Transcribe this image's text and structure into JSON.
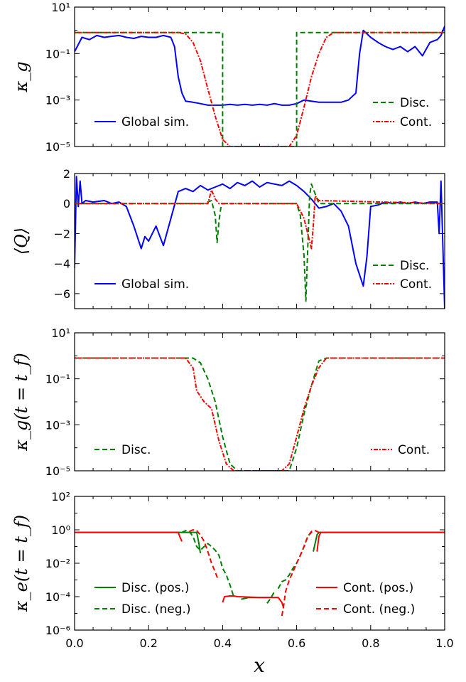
{
  "figure": {
    "xlabel": "x"
  },
  "colors": {
    "global": "#0000ff",
    "disc": "#008000",
    "cont": "#ff0000",
    "axis": "#000000"
  },
  "chart_data": [
    {
      "type": "line",
      "ylabel": "κ_g",
      "yscale": "log",
      "ylim": [
        1e-05,
        10
      ],
      "xlim": [
        0,
        1
      ],
      "yticks": [
        {
          "v": 1e-05,
          "t": "10⁻⁵"
        },
        {
          "v": 0.001,
          "t": "10⁻³"
        },
        {
          "v": 0.1,
          "t": "10⁻¹"
        },
        {
          "v": 10,
          "t": "10¹"
        }
      ],
      "legend": [
        {
          "label": "Global sim.",
          "series": "global",
          "pos": "bottom-left"
        },
        {
          "label": "Disc.",
          "series": "disc",
          "pos": "right-upper"
        },
        {
          "label": "Cont.",
          "series": "cont",
          "pos": "bottom-right"
        }
      ],
      "series": [
        {
          "name": "Global sim.",
          "key": "global",
          "style": "solid",
          "x": [
            0.0,
            0.02,
            0.04,
            0.06,
            0.08,
            0.1,
            0.12,
            0.14,
            0.16,
            0.18,
            0.2,
            0.22,
            0.24,
            0.26,
            0.27,
            0.28,
            0.29,
            0.3,
            0.32,
            0.34,
            0.36,
            0.38,
            0.4,
            0.42,
            0.44,
            0.46,
            0.48,
            0.5,
            0.52,
            0.54,
            0.56,
            0.58,
            0.6,
            0.62,
            0.64,
            0.66,
            0.68,
            0.7,
            0.72,
            0.74,
            0.76,
            0.77,
            0.78,
            0.8,
            0.82,
            0.84,
            0.86,
            0.88,
            0.9,
            0.92,
            0.94,
            0.96,
            0.98,
            0.99,
            1.0
          ],
          "y": [
            0.12,
            0.5,
            0.4,
            0.6,
            0.5,
            0.55,
            0.6,
            0.5,
            0.45,
            0.55,
            0.5,
            0.5,
            0.6,
            0.5,
            0.2,
            0.01,
            0.002,
            0.0009,
            0.0008,
            0.0007,
            0.0006,
            0.0006,
            0.0006,
            0.00065,
            0.0006,
            0.00065,
            0.0006,
            0.00065,
            0.0006,
            0.0007,
            0.0006,
            0.0006,
            0.0007,
            0.001,
            0.0009,
            0.0008,
            0.0008,
            0.0008,
            0.0008,
            0.001,
            0.002,
            0.1,
            1.0,
            0.5,
            0.3,
            0.2,
            0.15,
            0.2,
            0.12,
            0.2,
            0.08,
            0.3,
            0.4,
            0.6,
            1.5
          ]
        },
        {
          "name": "Disc.",
          "key": "disc",
          "style": "dashed",
          "x": [
            0.0,
            0.4,
            0.4,
            0.42,
            0.44,
            0.46,
            0.48,
            0.5,
            0.52,
            0.54,
            0.56,
            0.58,
            0.6,
            0.6,
            1.0
          ],
          "y": [
            0.8,
            0.8,
            1e-05,
            1e-05,
            1e-05,
            1e-05,
            1e-05,
            1e-05,
            1e-05,
            1e-05,
            1e-05,
            1e-05,
            1e-05,
            0.8,
            0.8
          ]
        },
        {
          "name": "Cont.",
          "key": "cont",
          "style": "dotted",
          "x": [
            0.0,
            0.28,
            0.3,
            0.32,
            0.34,
            0.36,
            0.38,
            0.4,
            0.42,
            0.58,
            0.6,
            0.62,
            0.64,
            0.66,
            0.68,
            0.7,
            1.0
          ],
          "y": [
            0.8,
            0.8,
            0.7,
            0.3,
            0.05,
            0.003,
            0.0002,
            2e-05,
            1e-05,
            1e-05,
            3e-05,
            0.0005,
            0.01,
            0.1,
            0.5,
            0.8,
            0.8
          ]
        }
      ]
    },
    {
      "type": "line",
      "ylabel": "⟨Q⟩",
      "yscale": "linear",
      "ylim": [
        -7,
        2
      ],
      "xlim": [
        0,
        1
      ],
      "yticks": [
        {
          "v": 2,
          "t": "2"
        },
        {
          "v": 0,
          "t": "0"
        },
        {
          "v": -2,
          "t": "−2"
        },
        {
          "v": -4,
          "t": "−4"
        },
        {
          "v": -6,
          "t": "−6"
        }
      ],
      "legend": [
        {
          "label": "Global sim.",
          "series": "global",
          "pos": "bottom-left"
        },
        {
          "label": "Disc.",
          "series": "disc",
          "pos": "right-upper"
        },
        {
          "label": "Cont.",
          "series": "cont",
          "pos": "bottom-right"
        }
      ],
      "series": [
        {
          "name": "Global sim.",
          "key": "global",
          "style": "solid",
          "x": [
            0.0,
            0.005,
            0.01,
            0.015,
            0.02,
            0.03,
            0.05,
            0.08,
            0.1,
            0.12,
            0.14,
            0.16,
            0.18,
            0.19,
            0.2,
            0.22,
            0.24,
            0.26,
            0.28,
            0.3,
            0.32,
            0.34,
            0.36,
            0.38,
            0.4,
            0.42,
            0.44,
            0.46,
            0.48,
            0.5,
            0.52,
            0.54,
            0.56,
            0.58,
            0.6,
            0.62,
            0.64,
            0.66,
            0.68,
            0.7,
            0.72,
            0.74,
            0.76,
            0.78,
            0.79,
            0.8,
            0.82,
            0.84,
            0.86,
            0.88,
            0.9,
            0.92,
            0.94,
            0.96,
            0.98,
            0.985,
            0.99,
            1.0
          ],
          "y": [
            -4.3,
            1.8,
            -0.2,
            1.5,
            0.0,
            0.2,
            0.1,
            0.2,
            0.0,
            0.1,
            -0.2,
            -1.5,
            -3.0,
            -2.2,
            -2.5,
            -1.5,
            -2.8,
            -1.0,
            0.8,
            1.0,
            0.8,
            1.2,
            0.9,
            1.1,
            1.3,
            1.0,
            1.4,
            1.2,
            1.5,
            1.1,
            1.4,
            1.3,
            1.2,
            1.5,
            1.2,
            0.8,
            0.3,
            -0.3,
            -0.2,
            0.0,
            -0.5,
            -1.5,
            -4.0,
            -5.5,
            -3.5,
            -0.2,
            -0.1,
            0.1,
            0.0,
            0.1,
            0.0,
            0.1,
            0.0,
            0.1,
            0.1,
            -2.0,
            1.5,
            -7.0
          ]
        },
        {
          "name": "Disc.",
          "key": "disc",
          "style": "dashed",
          "x": [
            0.0,
            0.35,
            0.37,
            0.38,
            0.385,
            0.39,
            0.395,
            0.4,
            0.45,
            0.6,
            0.61,
            0.62,
            0.625,
            0.63,
            0.635,
            0.64,
            0.66,
            1.0
          ],
          "y": [
            0.0,
            0.0,
            0.2,
            -0.8,
            -2.6,
            -1.2,
            -0.3,
            0.0,
            0.0,
            0.0,
            -0.8,
            -3.5,
            -6.5,
            -3.0,
            0.5,
            1.3,
            0.0,
            0.0
          ]
        },
        {
          "name": "Cont.",
          "key": "cont",
          "style": "dotted",
          "x": [
            0.0,
            0.36,
            0.37,
            0.38,
            0.39,
            0.6,
            0.62,
            0.64,
            0.645,
            0.65,
            0.66,
            1.0
          ],
          "y": [
            0.0,
            0.0,
            0.9,
            0.3,
            0.0,
            0.0,
            -1.0,
            -3.0,
            -1.5,
            0.5,
            0.2,
            0.0
          ]
        }
      ]
    },
    {
      "type": "line",
      "ylabel": "κ_g(t = t_f)",
      "yscale": "log",
      "ylim": [
        1e-05,
        10
      ],
      "xlim": [
        0,
        1
      ],
      "yticks": [
        {
          "v": 1e-05,
          "t": "10⁻⁵"
        },
        {
          "v": 0.001,
          "t": "10⁻³"
        },
        {
          "v": 0.1,
          "t": "10⁻¹"
        },
        {
          "v": 10,
          "t": "10¹"
        }
      ],
      "legend": [
        {
          "label": "Disc.",
          "series": "disc",
          "pos": "bottom-left"
        },
        {
          "label": "Cont.",
          "series": "cont",
          "pos": "bottom-right"
        }
      ],
      "series": [
        {
          "name": "Disc.",
          "key": "disc",
          "style": "dashed",
          "x": [
            0.0,
            0.32,
            0.34,
            0.36,
            0.38,
            0.4,
            0.42,
            0.44,
            0.46,
            0.5,
            0.54,
            0.58,
            0.6,
            0.62,
            0.64,
            0.66,
            0.68,
            1.0
          ],
          "y": [
            0.8,
            0.8,
            0.5,
            0.1,
            0.01,
            0.0003,
            2e-05,
            1e-05,
            1e-05,
            1e-05,
            1e-05,
            1e-05,
            0.0001,
            0.003,
            0.05,
            0.6,
            0.8,
            0.8
          ]
        },
        {
          "name": "Cont.",
          "key": "cont",
          "style": "dotted",
          "x": [
            0.0,
            0.3,
            0.32,
            0.33,
            0.35,
            0.37,
            0.39,
            0.41,
            0.43,
            0.5,
            0.56,
            0.58,
            0.6,
            0.62,
            0.64,
            0.66,
            0.68,
            0.7,
            1.0
          ],
          "y": [
            0.8,
            0.8,
            0.3,
            0.03,
            0.01,
            0.005,
            0.0002,
            2e-05,
            1e-05,
            1e-05,
            1e-05,
            2e-05,
            0.0003,
            0.005,
            0.05,
            0.3,
            0.8,
            0.8,
            0.8
          ]
        }
      ]
    },
    {
      "type": "line",
      "ylabel": "κ_e(t = t_f)",
      "yscale": "log",
      "ylim": [
        1e-06,
        100
      ],
      "xlim": [
        0,
        1
      ],
      "xticks": [
        "0.0",
        "0.2",
        "0.4",
        "0.6",
        "0.8",
        "1.0"
      ],
      "yticks": [
        {
          "v": 1e-06,
          "t": "10⁻⁶"
        },
        {
          "v": 0.0001,
          "t": "10⁻⁴"
        },
        {
          "v": 0.01,
          "t": "10⁻²"
        },
        {
          "v": 1,
          "t": "10⁰"
        },
        {
          "v": 100,
          "t": "10²"
        }
      ],
      "legend": [
        {
          "label": "Disc. (pos.)",
          "series": "disc-pos",
          "pos": "bottom-left-1"
        },
        {
          "label": "Disc. (neg.)",
          "series": "disc-neg",
          "pos": "bottom-left-2"
        },
        {
          "label": "Cont. (pos.)",
          "series": "cont-pos",
          "pos": "bottom-right-1"
        },
        {
          "label": "Cont. (neg.)",
          "series": "cont-neg",
          "pos": "bottom-right-2"
        }
      ],
      "series": [
        {
          "name": "Disc. (pos.)",
          "key": "disc",
          "style": "solid",
          "segments": [
            {
              "x": [
                0.0,
                0.33,
                0.335,
                0.34
              ],
              "y": [
                0.7,
                0.7,
                0.2,
                0.04
              ]
            },
            {
              "x": [
                0.45,
                0.47,
                0.5,
                0.53
              ],
              "y": [
                7e-05,
                9e-05,
                9e-05,
                9e-05
              ]
            },
            {
              "x": [
                0.645,
                0.655,
                0.66,
                0.68,
                1.0
              ],
              "y": [
                0.05,
                0.5,
                0.7,
                0.7,
                0.7
              ]
            }
          ]
        },
        {
          "name": "Disc. (neg.)",
          "key": "disc",
          "style": "dashed",
          "segments": [
            {
              "x": [
                0.29,
                0.3,
                0.31,
                0.32,
                0.33,
                0.34,
                0.35,
                0.36,
                0.37,
                0.38,
                0.39,
                0.4,
                0.41,
                0.42,
                0.43
              ],
              "y": [
                0.7,
                0.9,
                0.8,
                0.4,
                0.1,
                0.06,
                0.1,
                0.15,
                0.1,
                0.06,
                0.03,
                0.005,
                0.002,
                0.0005,
                0.0001
              ]
            },
            {
              "x": [
                0.52,
                0.53,
                0.54
              ],
              "y": [
                4e-05,
                8e-05,
                0.0002
              ]
            },
            {
              "x": [
                0.55,
                0.56,
                0.57,
                0.58,
                0.59,
                0.6,
                0.61,
                0.62,
                0.63,
                0.64,
                0.65
              ],
              "y": [
                0.0003,
                0.0008,
                0.001,
                0.002,
                0.005,
                0.01,
                0.03,
                0.1,
                0.4,
                0.7,
                0.8
              ]
            }
          ]
        },
        {
          "name": "Cont. (pos.)",
          "key": "cont",
          "style": "solid",
          "segments": [
            {
              "x": [
                0.0,
                0.28,
                0.285,
                0.29
              ],
              "y": [
                0.7,
                0.7,
                0.35,
                0.2
              ]
            },
            {
              "x": [
                0.4,
                0.405,
                0.42,
                0.43,
                0.44,
                0.5,
                0.55,
                0.56,
                0.565
              ],
              "y": [
                4.5e-05,
                0.0001,
                0.00011,
                0.00011,
                0.0001,
                9e-05,
                9e-05,
                4.5e-05,
                2e-05
              ]
            },
            {
              "x": [
                0.655,
                0.66,
                0.665,
                0.68,
                1.0
              ],
              "y": [
                0.05,
                0.4,
                0.7,
                0.7,
                0.7
              ]
            }
          ]
        },
        {
          "name": "Cont. (neg.)",
          "key": "cont",
          "style": "dashed",
          "segments": [
            {
              "x": [
                0.31,
                0.32,
                0.33,
                0.34,
                0.35,
                0.36,
                0.37,
                0.38,
                0.385,
                0.39
              ],
              "y": [
                0.8,
                1.0,
                0.9,
                0.5,
                0.2,
                0.05,
                0.01,
                0.003,
                0.0015,
                0.001
              ]
            },
            {
              "x": [
                0.56,
                0.565,
                0.57,
                0.58,
                0.59,
                0.6,
                0.61,
                0.62,
                0.63,
                0.64,
                0.65,
                0.66
              ],
              "y": [
                7e-06,
                3e-05,
                0.0002,
                0.001,
                0.003,
                0.01,
                0.03,
                0.1,
                0.4,
                0.8,
                0.9,
                0.7
              ]
            }
          ]
        }
      ]
    }
  ]
}
